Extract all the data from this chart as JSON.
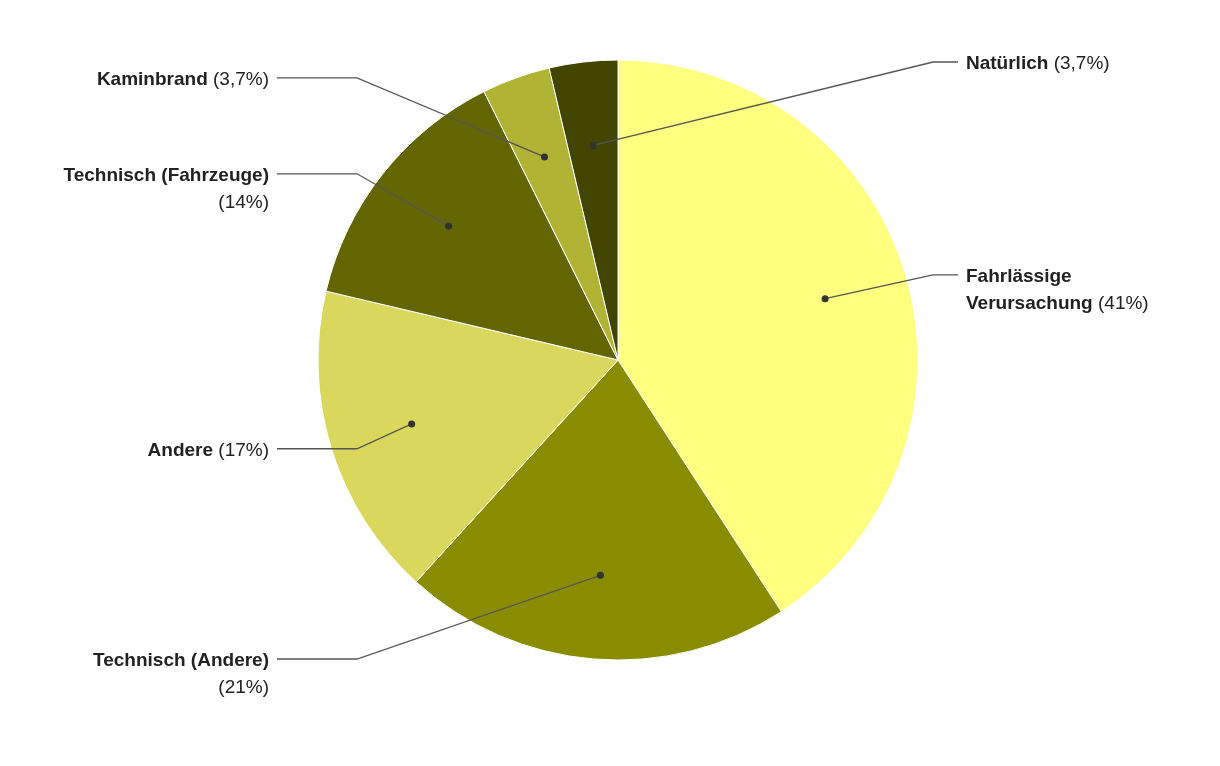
{
  "chart_data": {
    "type": "pie",
    "categories": [
      "Fahrlässige Verursachung",
      "Technisch (Andere)",
      "Andere",
      "Technisch (Fahrzeuge)",
      "Kaminbrand",
      "Natürlich"
    ],
    "values": [
      41,
      21,
      17,
      14,
      3.7,
      3.7
    ],
    "value_labels": [
      "(41%)",
      "(21%)",
      "(17%)",
      "(14%)",
      "(3,7%)",
      "(3,7%)"
    ],
    "colors": [
      "#ffff80",
      "#8a8c00",
      "#d9d85c",
      "#636600",
      "#b1b335",
      "#424500"
    ]
  }
}
